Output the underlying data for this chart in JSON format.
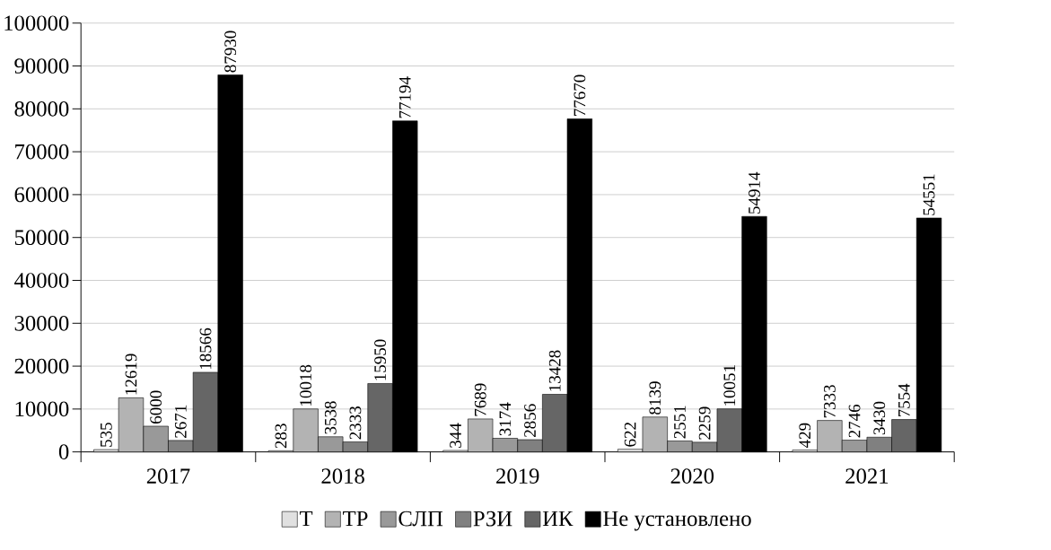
{
  "chart_data": {
    "type": "bar",
    "categories": [
      "2017",
      "2018",
      "2019",
      "2020",
      "2021"
    ],
    "series": [
      {
        "name": "Т",
        "color": "#e0e0e0",
        "values": [
          535,
          283,
          344,
          622,
          429
        ]
      },
      {
        "name": "ТР",
        "color": "#b3b3b3",
        "values": [
          12619,
          10018,
          7689,
          8139,
          7333
        ]
      },
      {
        "name": "СЛП",
        "color": "#999999",
        "values": [
          6000,
          3538,
          3174,
          2551,
          2746
        ]
      },
      {
        "name": "РЗИ",
        "color": "#808080",
        "values": [
          2671,
          2333,
          2856,
          2259,
          3430
        ]
      },
      {
        "name": "ИК",
        "color": "#666666",
        "values": [
          18566,
          15950,
          13428,
          10051,
          7554
        ]
      },
      {
        "name": "Не установлено",
        "color": "#000000",
        "values": [
          87930,
          77194,
          77670,
          54914,
          54551
        ]
      }
    ],
    "ylim": [
      0,
      100000
    ],
    "yticks": [
      0,
      10000,
      20000,
      30000,
      40000,
      50000,
      60000,
      70000,
      80000,
      90000,
      100000
    ],
    "grid": "y",
    "legend": "bottom",
    "data_labels": true
  }
}
